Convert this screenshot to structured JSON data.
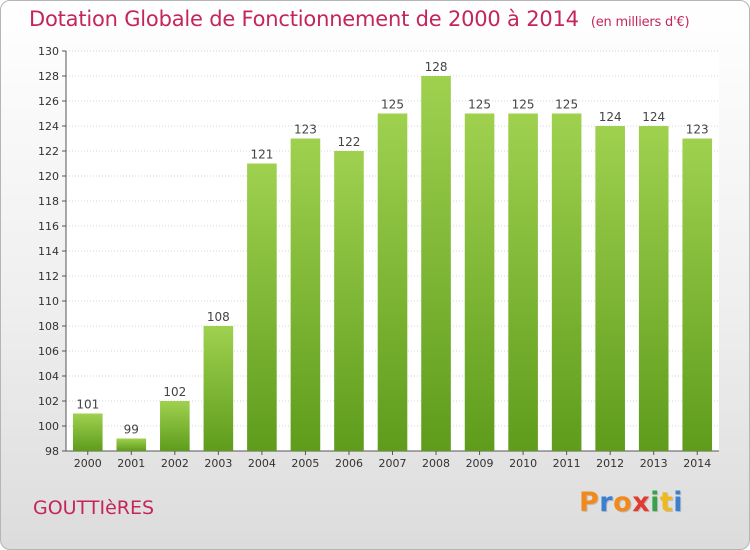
{
  "title": "Dotation Globale de Fonctionnement de 2000 à 2014",
  "unit": "(en milliers d'€)",
  "commune": "GOUTTIèRES",
  "logo": [
    "P",
    "r",
    "o",
    "x",
    "i",
    "t",
    "i"
  ],
  "colors": {
    "title": "#c4255b",
    "bar_top": "#9fd14f",
    "bar_bottom": "#5f9c1c",
    "logo": [
      "#f08a1c",
      "#3a7fd0",
      "#f08a1c",
      "#e23a2e",
      "#3aa04a",
      "#f0b81c",
      "#3a7fd0"
    ]
  },
  "chart_data": {
    "type": "bar",
    "categories": [
      "2000",
      "2001",
      "2002",
      "2003",
      "2004",
      "2005",
      "2006",
      "2007",
      "2008",
      "2009",
      "2010",
      "2011",
      "2012",
      "2013",
      "2014"
    ],
    "values": [
      101,
      99,
      102,
      108,
      121,
      123,
      122,
      125,
      128,
      125,
      125,
      125,
      124,
      124,
      123
    ],
    "ylim": [
      98,
      130
    ],
    "yticks": [
      98,
      100,
      102,
      104,
      106,
      108,
      110,
      112,
      114,
      116,
      118,
      120,
      122,
      124,
      126,
      128,
      130
    ],
    "grid": true
  }
}
